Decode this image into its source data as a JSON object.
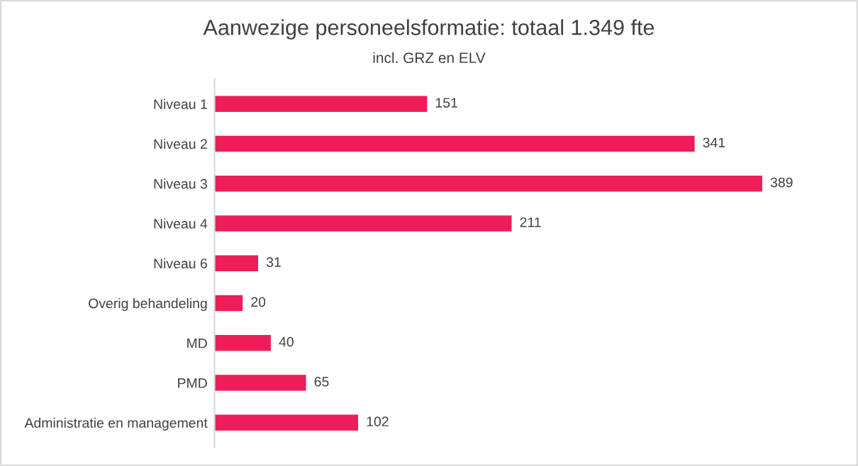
{
  "chart_data": {
    "type": "bar",
    "orientation": "horizontal",
    "title": "Aanwezige personeelsformatie: totaal 1.349 fte",
    "subtitle": "incl. GRZ en ELV",
    "categories": [
      "Niveau 1",
      "Niveau 2",
      "Niveau 3",
      "Niveau 4",
      "Niveau 6",
      "Overig behandeling",
      "MD",
      "PMD",
      "Administratie en management"
    ],
    "values": [
      151,
      341,
      389,
      211,
      31,
      20,
      40,
      65,
      102
    ],
    "color": "#ee1d5a",
    "data_labels": true,
    "grid": false,
    "legend": false
  }
}
